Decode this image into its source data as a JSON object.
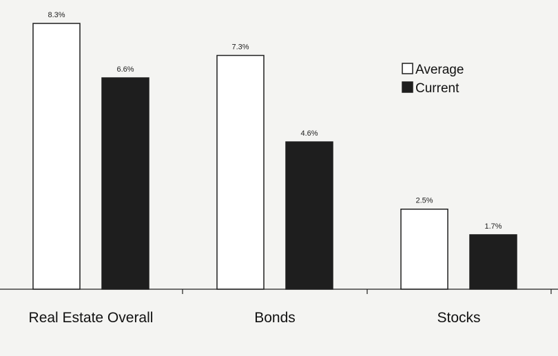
{
  "colors": {
    "background": "#f4f4f2",
    "average_fill": "#ffffff",
    "current_fill": "#1e1e1e",
    "stroke": "#1e1e1e"
  },
  "chart_data": {
    "type": "bar",
    "categories": [
      "Real Estate Overall",
      "Bonds",
      "Stocks"
    ],
    "series": [
      {
        "name": "Average",
        "values": [
          8.3,
          7.3,
          2.5
        ],
        "labels": [
          "8.3%",
          "7.3%",
          "2.5%"
        ],
        "color": "#ffffff"
      },
      {
        "name": "Current",
        "values": [
          6.6,
          4.6,
          1.7
        ],
        "labels": [
          "6.6%",
          "4.6%",
          "1.7%"
        ],
        "color": "#1e1e1e"
      }
    ],
    "title": "",
    "xlabel": "",
    "ylabel": "",
    "ylim": [
      0,
      8.3
    ],
    "grid": false,
    "legend": "top-right",
    "data_labels": true
  }
}
